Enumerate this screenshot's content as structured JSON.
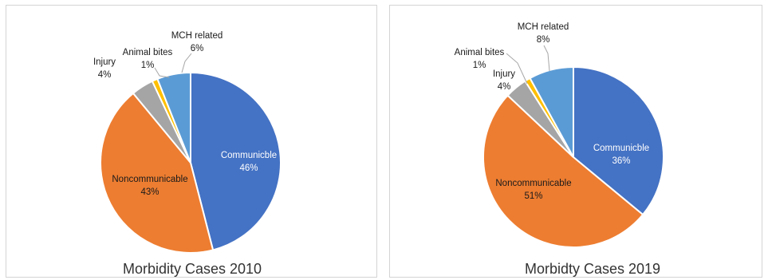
{
  "colors": {
    "communicable": "#4472C4",
    "noncommunicable": "#ED7D31",
    "injury": "#A5A5A5",
    "animal_bites": "#FFC000",
    "mch_related": "#5B9BD5"
  },
  "chart_data": [
    {
      "type": "pie",
      "title": "Morbidity Cases 2010",
      "slices": [
        {
          "label": "Communicble",
          "value": 46,
          "value_label": "46%"
        },
        {
          "label": "Noncommunicable",
          "value": 43,
          "value_label": "43%"
        },
        {
          "label": "Injury",
          "value": 4,
          "value_label": "4%"
        },
        {
          "label": "Animal bites",
          "value": 1,
          "value_label": "1%"
        },
        {
          "label": "MCH related",
          "value": 6,
          "value_label": "6%"
        }
      ]
    },
    {
      "type": "pie",
      "title": "Morbidty Cases 2019",
      "slices": [
        {
          "label": "Communicble",
          "value": 36,
          "value_label": "36%"
        },
        {
          "label": "Noncommunicable",
          "value": 51,
          "value_label": "51%"
        },
        {
          "label": "Injury",
          "value": 4,
          "value_label": "4%"
        },
        {
          "label": "Animal bites",
          "value": 1,
          "value_label": "1%"
        },
        {
          "label": "MCH related",
          "value": 8,
          "value_label": "8%"
        }
      ]
    }
  ]
}
